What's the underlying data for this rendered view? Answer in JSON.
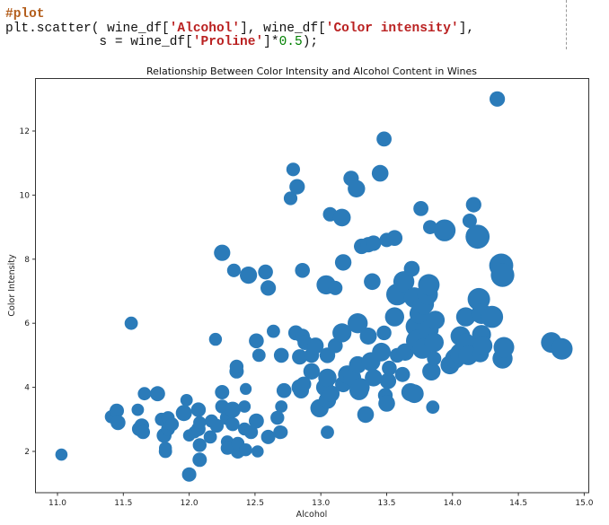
{
  "cell": {
    "code_lines": [
      {
        "parts": [
          {
            "t": "#plot",
            "c": "cm"
          }
        ]
      },
      {
        "parts": [
          {
            "t": "plt.scatter( wine_df[",
            "c": ""
          },
          {
            "t": "'Alcohol'",
            "c": "str"
          },
          {
            "t": "], wine_df[",
            "c": ""
          },
          {
            "t": "'Color intensity'",
            "c": "str"
          },
          {
            "t": "],",
            "c": ""
          }
        ]
      },
      {
        "parts": [
          {
            "t": "            s = wine_df[",
            "c": ""
          },
          {
            "t": "'Proline'",
            "c": "str"
          },
          {
            "t": "]*",
            "c": ""
          },
          {
            "t": "0.5",
            "c": "num"
          },
          {
            "t": ");",
            "c": ""
          }
        ]
      }
    ]
  },
  "chart_data": {
    "type": "scatter",
    "title": "Relationship Between Color Intensity and Alcohol Content in Wines",
    "xlabel": "Alcohol",
    "ylabel": "Color Intensity",
    "xlim": [
      10.83,
      15.05
    ],
    "ylim": [
      0.7,
      13.6
    ],
    "xticks": [
      11.0,
      11.5,
      12.0,
      12.5,
      13.0,
      13.5,
      14.0,
      14.5,
      15.0
    ],
    "xtick_labels": [
      "11.0",
      "11.5",
      "12.0",
      "12.5",
      "13.0",
      "13.5",
      "14.0",
      "14.5",
      "15.0"
    ],
    "yticks": [
      2,
      4,
      6,
      8,
      10,
      12
    ],
    "ytick_labels": [
      "2",
      "4",
      "6",
      "8",
      "10",
      "12"
    ],
    "grid": false,
    "legend": null,
    "marker_color": "#2b7bb9",
    "size_encoding": "s = Proline * 0.5",
    "points": [
      {
        "x": 11.03,
        "y": 1.9,
        "size": 400
      },
      {
        "x": 11.41,
        "y": 3.08,
        "size": 480
      },
      {
        "x": 11.45,
        "y": 3.27,
        "size": 560
      },
      {
        "x": 11.46,
        "y": 2.9,
        "size": 600
      },
      {
        "x": 11.56,
        "y": 6.0,
        "size": 480
      },
      {
        "x": 11.61,
        "y": 3.3,
        "size": 420
      },
      {
        "x": 11.62,
        "y": 2.7,
        "size": 560
      },
      {
        "x": 11.64,
        "y": 2.8,
        "size": 580
      },
      {
        "x": 11.65,
        "y": 2.6,
        "size": 520
      },
      {
        "x": 11.66,
        "y": 3.8,
        "size": 480
      },
      {
        "x": 11.76,
        "y": 3.8,
        "size": 620
      },
      {
        "x": 11.79,
        "y": 3.0,
        "size": 470
      },
      {
        "x": 11.81,
        "y": 2.5,
        "size": 600
      },
      {
        "x": 11.82,
        "y": 2.0,
        "size": 480
      },
      {
        "x": 11.82,
        "y": 2.1,
        "size": 450
      },
      {
        "x": 11.84,
        "y": 2.7,
        "size": 520
      },
      {
        "x": 11.84,
        "y": 3.05,
        "size": 470
      },
      {
        "x": 11.87,
        "y": 2.85,
        "size": 500
      },
      {
        "x": 11.96,
        "y": 3.2,
        "size": 700
      },
      {
        "x": 11.98,
        "y": 3.6,
        "size": 420
      },
      {
        "x": 12.0,
        "y": 1.28,
        "size": 560
      },
      {
        "x": 12.0,
        "y": 2.5,
        "size": 400
      },
      {
        "x": 12.04,
        "y": 2.6,
        "size": 420
      },
      {
        "x": 12.07,
        "y": 2.7,
        "size": 560
      },
      {
        "x": 12.07,
        "y": 3.3,
        "size": 580
      },
      {
        "x": 12.08,
        "y": 2.2,
        "size": 520
      },
      {
        "x": 12.08,
        "y": 2.9,
        "size": 450
      },
      {
        "x": 12.08,
        "y": 1.74,
        "size": 560
      },
      {
        "x": 12.16,
        "y": 2.45,
        "size": 480
      },
      {
        "x": 12.17,
        "y": 2.95,
        "size": 470
      },
      {
        "x": 12.2,
        "y": 5.5,
        "size": 450
      },
      {
        "x": 12.21,
        "y": 2.8,
        "size": 520
      },
      {
        "x": 12.25,
        "y": 3.85,
        "size": 560
      },
      {
        "x": 12.25,
        "y": 8.2,
        "size": 720
      },
      {
        "x": 12.25,
        "y": 3.4,
        "size": 520
      },
      {
        "x": 12.29,
        "y": 2.3,
        "size": 450
      },
      {
        "x": 12.29,
        "y": 3.05,
        "size": 600
      },
      {
        "x": 12.29,
        "y": 2.1,
        "size": 480
      },
      {
        "x": 12.33,
        "y": 3.3,
        "size": 700
      },
      {
        "x": 12.33,
        "y": 2.85,
        "size": 520
      },
      {
        "x": 12.34,
        "y": 7.65,
        "size": 500
      },
      {
        "x": 12.36,
        "y": 4.5,
        "size": 560
      },
      {
        "x": 12.36,
        "y": 4.65,
        "size": 520
      },
      {
        "x": 12.37,
        "y": 2.0,
        "size": 560
      },
      {
        "x": 12.37,
        "y": 2.25,
        "size": 480
      },
      {
        "x": 12.42,
        "y": 3.4,
        "size": 420
      },
      {
        "x": 12.42,
        "y": 2.7,
        "size": 450
      },
      {
        "x": 12.43,
        "y": 3.95,
        "size": 380
      },
      {
        "x": 12.43,
        "y": 2.05,
        "size": 450
      },
      {
        "x": 12.45,
        "y": 7.5,
        "size": 800
      },
      {
        "x": 12.47,
        "y": 2.6,
        "size": 520
      },
      {
        "x": 12.51,
        "y": 2.95,
        "size": 620
      },
      {
        "x": 12.51,
        "y": 5.45,
        "size": 600
      },
      {
        "x": 12.52,
        "y": 2.0,
        "size": 400
      },
      {
        "x": 12.53,
        "y": 5.0,
        "size": 480
      },
      {
        "x": 12.58,
        "y": 7.6,
        "size": 600
      },
      {
        "x": 12.6,
        "y": 2.45,
        "size": 560
      },
      {
        "x": 12.6,
        "y": 7.1,
        "size": 640
      },
      {
        "x": 12.64,
        "y": 5.75,
        "size": 470
      },
      {
        "x": 12.67,
        "y": 3.05,
        "size": 520
      },
      {
        "x": 12.69,
        "y": 2.6,
        "size": 500
      },
      {
        "x": 12.7,
        "y": 3.4,
        "size": 420
      },
      {
        "x": 12.7,
        "y": 2.6,
        "size": 450
      },
      {
        "x": 12.7,
        "y": 5.0,
        "size": 600
      },
      {
        "x": 12.72,
        "y": 3.9,
        "size": 600
      },
      {
        "x": 12.77,
        "y": 9.9,
        "size": 500
      },
      {
        "x": 12.79,
        "y": 10.8,
        "size": 500
      },
      {
        "x": 12.81,
        "y": 5.7,
        "size": 620
      },
      {
        "x": 12.82,
        "y": 10.26,
        "size": 640
      },
      {
        "x": 12.84,
        "y": 4.0,
        "size": 720
      },
      {
        "x": 12.84,
        "y": 4.95,
        "size": 640
      },
      {
        "x": 12.85,
        "y": 3.9,
        "size": 680
      },
      {
        "x": 12.86,
        "y": 7.65,
        "size": 600
      },
      {
        "x": 12.86,
        "y": 5.6,
        "size": 600
      },
      {
        "x": 12.87,
        "y": 4.1,
        "size": 620
      },
      {
        "x": 12.88,
        "y": 5.4,
        "size": 620
      },
      {
        "x": 12.93,
        "y": 4.5,
        "size": 740
      },
      {
        "x": 12.93,
        "y": 5.0,
        "size": 620
      },
      {
        "x": 12.96,
        "y": 5.3,
        "size": 720
      },
      {
        "x": 12.99,
        "y": 3.35,
        "size": 900
      },
      {
        "x": 13.03,
        "y": 4.0,
        "size": 820
      },
      {
        "x": 13.04,
        "y": 7.2,
        "size": 1000
      },
      {
        "x": 13.05,
        "y": 2.6,
        "size": 480
      },
      {
        "x": 13.05,
        "y": 3.6,
        "size": 820
      },
      {
        "x": 13.05,
        "y": 5.0,
        "size": 660
      },
      {
        "x": 13.05,
        "y": 4.3,
        "size": 900
      },
      {
        "x": 13.07,
        "y": 9.4,
        "size": 560
      },
      {
        "x": 13.08,
        "y": 3.8,
        "size": 740
      },
      {
        "x": 13.11,
        "y": 5.3,
        "size": 600
      },
      {
        "x": 13.11,
        "y": 7.1,
        "size": 560
      },
      {
        "x": 13.16,
        "y": 9.3,
        "size": 840
      },
      {
        "x": 13.16,
        "y": 5.7,
        "size": 980
      },
      {
        "x": 13.17,
        "y": 4.1,
        "size": 720
      },
      {
        "x": 13.17,
        "y": 7.9,
        "size": 740
      },
      {
        "x": 13.2,
        "y": 4.4,
        "size": 900
      },
      {
        "x": 13.23,
        "y": 10.52,
        "size": 640
      },
      {
        "x": 13.24,
        "y": 4.3,
        "size": 820
      },
      {
        "x": 13.27,
        "y": 10.2,
        "size": 820
      },
      {
        "x": 13.28,
        "y": 6.0,
        "size": 1100
      },
      {
        "x": 13.28,
        "y": 4.7,
        "size": 820
      },
      {
        "x": 13.29,
        "y": 3.9,
        "size": 1000
      },
      {
        "x": 13.3,
        "y": 4.0,
        "size": 940
      },
      {
        "x": 13.31,
        "y": 8.4,
        "size": 640
      },
      {
        "x": 13.34,
        "y": 3.15,
        "size": 760
      },
      {
        "x": 13.36,
        "y": 5.6,
        "size": 780
      },
      {
        "x": 13.36,
        "y": 8.45,
        "size": 640
      },
      {
        "x": 13.38,
        "y": 4.8,
        "size": 980
      },
      {
        "x": 13.39,
        "y": 7.3,
        "size": 760
      },
      {
        "x": 13.4,
        "y": 4.3,
        "size": 820
      },
      {
        "x": 13.4,
        "y": 8.5,
        "size": 640
      },
      {
        "x": 13.45,
        "y": 10.68,
        "size": 760
      },
      {
        "x": 13.46,
        "y": 5.1,
        "size": 940
      },
      {
        "x": 13.48,
        "y": 11.75,
        "size": 620
      },
      {
        "x": 13.48,
        "y": 5.7,
        "size": 580
      },
      {
        "x": 13.49,
        "y": 3.75,
        "size": 580
      },
      {
        "x": 13.5,
        "y": 3.5,
        "size": 760
      },
      {
        "x": 13.5,
        "y": 8.6,
        "size": 560
      },
      {
        "x": 13.51,
        "y": 4.2,
        "size": 720
      },
      {
        "x": 13.52,
        "y": 4.6,
        "size": 600
      },
      {
        "x": 13.56,
        "y": 6.2,
        "size": 1000
      },
      {
        "x": 13.56,
        "y": 8.66,
        "size": 680
      },
      {
        "x": 13.58,
        "y": 6.9,
        "size": 1300
      },
      {
        "x": 13.58,
        "y": 5.0,
        "size": 580
      },
      {
        "x": 13.62,
        "y": 4.4,
        "size": 620
      },
      {
        "x": 13.63,
        "y": 7.3,
        "size": 1200
      },
      {
        "x": 13.64,
        "y": 5.1,
        "size": 820
      },
      {
        "x": 13.68,
        "y": 3.85,
        "size": 880
      },
      {
        "x": 13.69,
        "y": 7.7,
        "size": 680
      },
      {
        "x": 13.71,
        "y": 3.8,
        "size": 940
      },
      {
        "x": 13.71,
        "y": 6.8,
        "size": 1150
      },
      {
        "x": 13.72,
        "y": 5.9,
        "size": 1100
      },
      {
        "x": 13.73,
        "y": 5.45,
        "size": 1290
      },
      {
        "x": 13.75,
        "y": 6.3,
        "size": 1100
      },
      {
        "x": 13.76,
        "y": 9.58,
        "size": 620
      },
      {
        "x": 13.77,
        "y": 5.2,
        "size": 1060
      },
      {
        "x": 13.78,
        "y": 6.6,
        "size": 1200
      },
      {
        "x": 13.81,
        "y": 6.9,
        "size": 1180
      },
      {
        "x": 13.82,
        "y": 7.2,
        "size": 1250
      },
      {
        "x": 13.82,
        "y": 5.8,
        "size": 1050
      },
      {
        "x": 13.83,
        "y": 9.0,
        "size": 540
      },
      {
        "x": 13.84,
        "y": 4.5,
        "size": 900
      },
      {
        "x": 13.85,
        "y": 3.38,
        "size": 480
      },
      {
        "x": 13.86,
        "y": 5.4,
        "size": 1000
      },
      {
        "x": 13.86,
        "y": 4.9,
        "size": 560
      },
      {
        "x": 13.87,
        "y": 6.1,
        "size": 940
      },
      {
        "x": 13.94,
        "y": 8.9,
        "size": 1300
      },
      {
        "x": 13.98,
        "y": 4.7,
        "size": 960
      },
      {
        "x": 14.02,
        "y": 4.9,
        "size": 1100
      },
      {
        "x": 14.06,
        "y": 5.05,
        "size": 1200
      },
      {
        "x": 14.06,
        "y": 5.6,
        "size": 1050
      },
      {
        "x": 14.1,
        "y": 6.2,
        "size": 1000
      },
      {
        "x": 14.1,
        "y": 5.4,
        "size": 900
      },
      {
        "x": 14.12,
        "y": 5.0,
        "size": 1060
      },
      {
        "x": 14.13,
        "y": 9.2,
        "size": 560
      },
      {
        "x": 14.16,
        "y": 9.7,
        "size": 640
      },
      {
        "x": 14.19,
        "y": 8.7,
        "size": 1550
      },
      {
        "x": 14.2,
        "y": 6.75,
        "size": 1350
      },
      {
        "x": 14.21,
        "y": 5.05,
        "size": 820
      },
      {
        "x": 14.22,
        "y": 6.3,
        "size": 1150
      },
      {
        "x": 14.22,
        "y": 5.65,
        "size": 980
      },
      {
        "x": 14.23,
        "y": 5.3,
        "size": 1000
      },
      {
        "x": 14.3,
        "y": 6.2,
        "size": 1320
      },
      {
        "x": 14.34,
        "y": 13.0,
        "size": 640
      },
      {
        "x": 14.37,
        "y": 7.8,
        "size": 1550
      },
      {
        "x": 14.38,
        "y": 7.5,
        "size": 1500
      },
      {
        "x": 14.38,
        "y": 4.9,
        "size": 1100
      },
      {
        "x": 14.39,
        "y": 5.25,
        "size": 1150
      },
      {
        "x": 14.75,
        "y": 5.4,
        "size": 1150
      },
      {
        "x": 14.83,
        "y": 5.2,
        "size": 1260
      }
    ]
  }
}
